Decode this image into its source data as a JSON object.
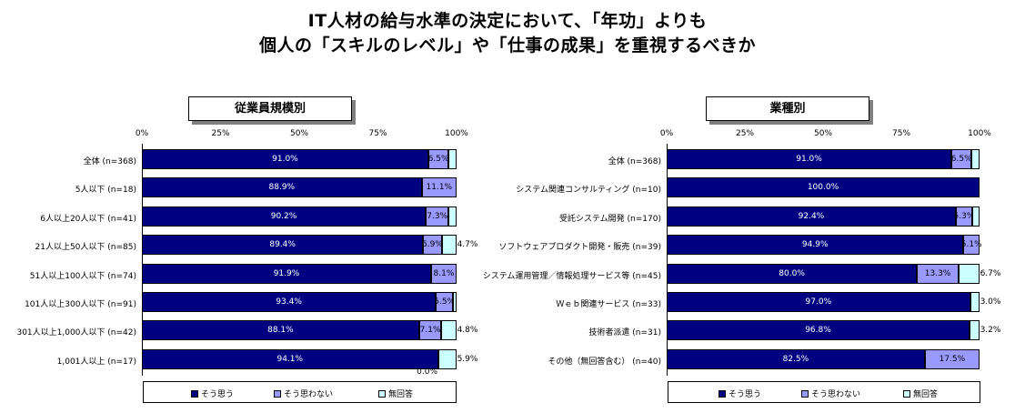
{
  "title": {
    "line1": "IT人材の給与水準の決定において、「年功」よりも",
    "line2": "個人の「スキルのレベル」や「仕事の成果」を重視するべきか"
  },
  "axis_ticks": [
    "0%",
    "25%",
    "50%",
    "75%",
    "100%"
  ],
  "legend": [
    "そう思う",
    "そう思わない",
    "無回答"
  ],
  "colors": {
    "yes": "#000080",
    "no": "#9999ff",
    "na": "#ccffff"
  },
  "chart_data": [
    {
      "type": "bar",
      "stacked": true,
      "orientation": "horizontal",
      "title": "従業員規模別",
      "xlim": [
        0,
        100
      ],
      "categories": [
        "全体 (n=368)",
        "5人以下 (n=18)",
        "6人以上20人以下 (n=41)",
        "21人以上50人以下 (n=85)",
        "51人以上100人以下 (n=74)",
        "101人以上300人以下 (n=91)",
        "301人以上1,000人以下 (n=42)",
        "1,001人以上 (n=17)"
      ],
      "series": [
        {
          "name": "そう思う",
          "values": [
            91.0,
            88.9,
            90.2,
            89.4,
            91.9,
            93.4,
            88.1,
            94.1
          ]
        },
        {
          "name": "そう思わない",
          "values": [
            6.5,
            11.1,
            7.3,
            5.9,
            8.1,
            5.5,
            7.1,
            0.0
          ]
        },
        {
          "name": "無回答",
          "values": [
            2.5,
            0.0,
            2.5,
            4.7,
            0.0,
            1.1,
            4.8,
            5.9
          ]
        }
      ],
      "labels": [
        [
          "91.0%",
          "6.5%",
          ""
        ],
        [
          "88.9%",
          "11.1%",
          ""
        ],
        [
          "90.2%",
          "7.3%",
          ""
        ],
        [
          "89.4%",
          "5.9%",
          "4.7%"
        ],
        [
          "91.9%",
          "8.1%",
          ""
        ],
        [
          "93.4%",
          "5.5%",
          ""
        ],
        [
          "88.1%",
          "7.1%",
          "4.8%"
        ],
        [
          "94.1%",
          "0.0%",
          "5.9%"
        ]
      ]
    },
    {
      "type": "bar",
      "stacked": true,
      "orientation": "horizontal",
      "title": "業種別",
      "xlim": [
        0,
        100
      ],
      "categories": [
        "全体 (n=368)",
        "システム関連コンサルティング (n=10)",
        "受託システム開発 (n=170)",
        "ソフトウェアプロダクト開発・販売 (n=39)",
        "システム運用管理／情報処理サービス等 (n=45)",
        "Ｗｅｂ関連サービス (n=33)",
        "技術者派遣 (n=31)",
        "その他（無回答含む） (n=40)"
      ],
      "series": [
        {
          "name": "そう思う",
          "values": [
            91.0,
            100.0,
            92.4,
            94.9,
            80.0,
            97.0,
            96.8,
            82.5
          ]
        },
        {
          "name": "そう思わない",
          "values": [
            6.5,
            0.0,
            5.3,
            5.1,
            13.3,
            0.0,
            0.0,
            17.5
          ]
        },
        {
          "name": "無回答",
          "values": [
            2.5,
            0.0,
            2.3,
            0.0,
            6.7,
            3.0,
            3.2,
            0.0
          ]
        }
      ],
      "labels": [
        [
          "91.0%",
          "6.5%",
          ""
        ],
        [
          "100.0%",
          "",
          ""
        ],
        [
          "92.4%",
          "5.3%",
          ""
        ],
        [
          "94.9%",
          "5.1%",
          ""
        ],
        [
          "80.0%",
          "13.3%",
          "6.7%"
        ],
        [
          "97.0%",
          "",
          "3.0%"
        ],
        [
          "96.8%",
          "",
          "3.2%"
        ],
        [
          "82.5%",
          "17.5%",
          ""
        ]
      ]
    }
  ]
}
